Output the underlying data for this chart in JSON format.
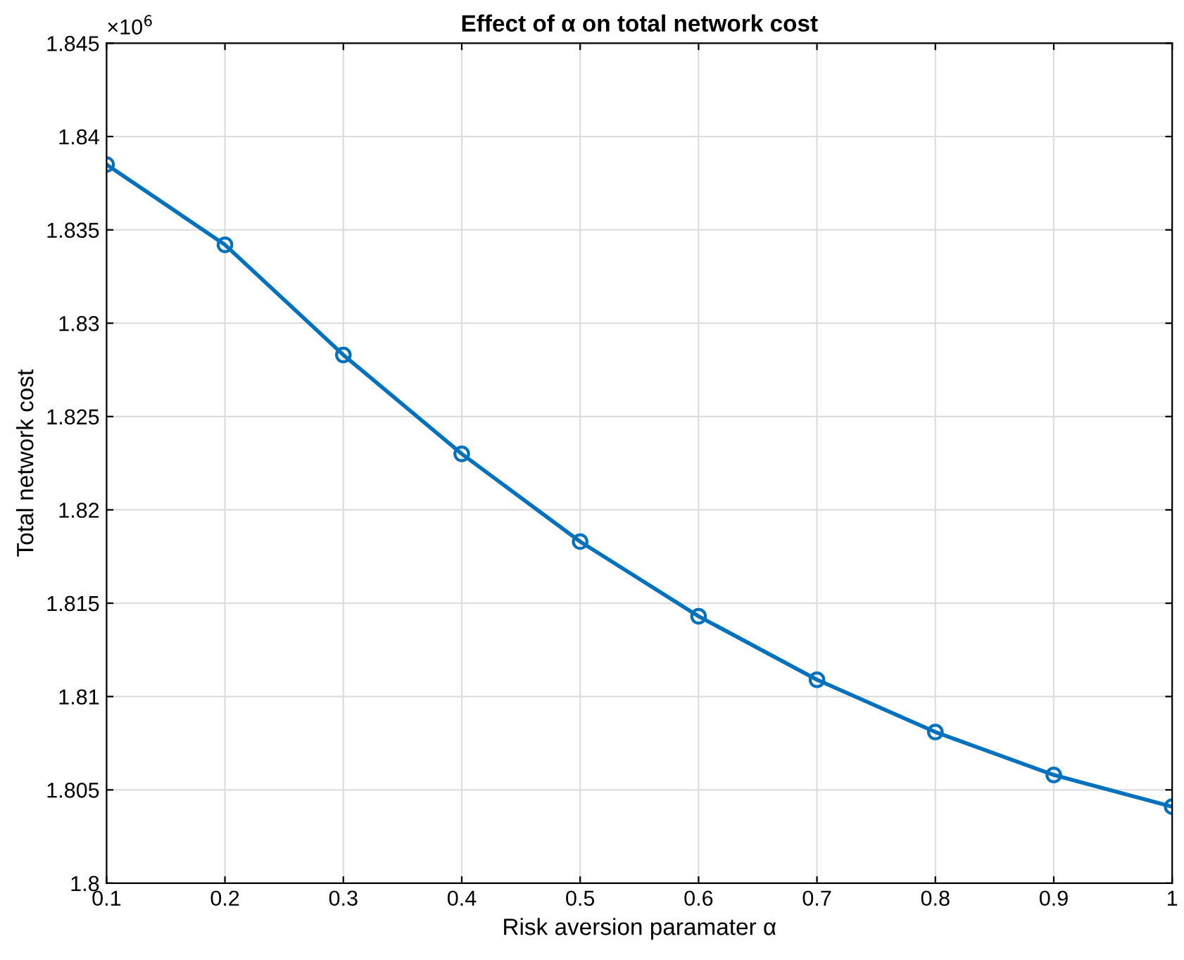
{
  "chart_data": {
    "type": "line",
    "title": "Effect of α on total network cost",
    "xlabel": "Risk aversion paramater α",
    "ylabel": "Total network cost",
    "x": [
      0.1,
      0.2,
      0.3,
      0.4,
      0.5,
      0.6,
      0.7,
      0.8,
      0.9,
      1.0
    ],
    "series": [
      {
        "color": "#0072bd",
        "values": [
          1.8385,
          1.8342,
          1.8283,
          1.823,
          1.8183,
          1.8143,
          1.8109,
          1.8081,
          1.8058,
          1.8041
        ]
      }
    ],
    "xlim": [
      0.1,
      1.0
    ],
    "xticks": [
      0.1,
      0.2,
      0.3,
      0.4,
      0.5,
      0.6,
      0.7,
      0.8,
      0.9,
      {
        "value": 1.0,
        "label": "1"
      }
    ],
    "ylim": [
      1.8,
      1.845
    ],
    "yticks": [
      1.8,
      1.805,
      1.81,
      1.815,
      1.82,
      1.825,
      1.83,
      1.835,
      1.84,
      1.845
    ],
    "annotations": [
      "×10$^{6}$"
    ],
    "grid": true,
    "marker": "circle",
    "line_style": "solid"
  }
}
